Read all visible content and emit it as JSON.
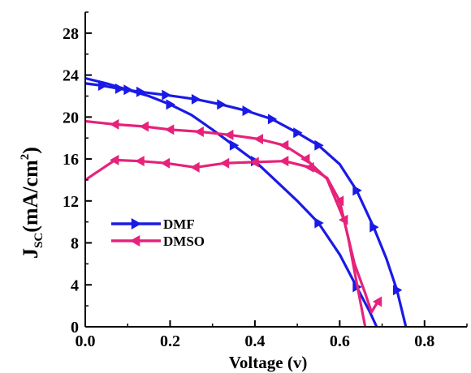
{
  "chart_data": {
    "type": "line",
    "xlabel": "Voltage (v)",
    "ylabel": "J",
    "ylabel_sub": "SC",
    "ylabel_unit": "(mA/cm",
    "ylabel_sup": "2",
    "ylabel_close": ")",
    "xlim": [
      0.0,
      0.9
    ],
    "ylim": [
      0,
      30
    ],
    "xticks": [
      0.0,
      0.2,
      0.4,
      0.6,
      0.8
    ],
    "xtick_labels": [
      "0.0",
      "0.2",
      "0.4",
      "0.6",
      "0.8"
    ],
    "yticks": [
      0,
      4,
      8,
      12,
      16,
      20,
      24,
      28
    ],
    "ytick_labels": [
      "0",
      "4",
      "8",
      "12",
      "16",
      "20",
      "24",
      "28"
    ],
    "grid": false,
    "legend_position": "bottom-left",
    "series": [
      {
        "name": "DMF",
        "color": "#1a1ae6",
        "marker": "triangle-right",
        "curves": [
          {
            "x": [
              0.0,
              0.04,
              0.08,
              0.13,
              0.19,
              0.26,
              0.32,
              0.38,
              0.44,
              0.5,
              0.55,
              0.6,
              0.64,
              0.68,
              0.71,
              0.735,
              0.756
            ],
            "y": [
              23.2,
              23.0,
              22.7,
              22.4,
              22.1,
              21.7,
              21.2,
              20.6,
              19.8,
              18.5,
              17.3,
              15.5,
              13.0,
              9.5,
              6.5,
              3.5,
              0.0
            ],
            "markers": [
              1,
              2,
              3,
              4,
              5,
              6,
              7,
              8,
              9,
              10,
              12,
              13,
              15
            ]
          },
          {
            "x": [
              0.0,
              0.05,
              0.1,
              0.15,
              0.2,
              0.25,
              0.3,
              0.35,
              0.4,
              0.45,
              0.5,
              0.55,
              0.6,
              0.64,
              0.67,
              0.687
            ],
            "y": [
              23.7,
              23.2,
              22.6,
              22.0,
              21.2,
              20.2,
              18.8,
              17.3,
              15.8,
              13.9,
              12.0,
              9.9,
              6.9,
              3.8,
              1.5,
              0.0
            ],
            "markers": [
              2,
              4,
              7,
              8,
              11,
              13
            ]
          }
        ]
      },
      {
        "name": "DMSO",
        "color": "#e6227a",
        "marker": "triangle-left",
        "curves": [
          {
            "x": [
              0.0,
              0.07,
              0.14,
              0.2,
              0.27,
              0.34,
              0.41,
              0.47,
              0.52,
              0.57,
              0.61,
              0.635,
              0.66,
              0.675,
              0.69
            ],
            "y": [
              19.6,
              19.3,
              19.1,
              18.8,
              18.6,
              18.3,
              17.9,
              17.3,
              16.0,
              14.1,
              10.2,
              6.0,
              3.2,
              1.4,
              2.4
            ],
            "markers": [
              1,
              2,
              3,
              4,
              5,
              6,
              7,
              8,
              10,
              14
            ]
          },
          {
            "x": [
              0.0,
              0.07,
              0.13,
              0.19,
              0.26,
              0.33,
              0.4,
              0.47,
              0.53,
              0.57,
              0.6,
              0.62,
              0.64,
              0.66
            ],
            "y": [
              14.0,
              15.9,
              15.8,
              15.6,
              15.2,
              15.6,
              15.7,
              15.8,
              15.2,
              14.2,
              12.0,
              8.5,
              4.2,
              0.0
            ],
            "markers": [
              1,
              2,
              3,
              4,
              5,
              6,
              7,
              8,
              10
            ]
          }
        ]
      }
    ]
  }
}
